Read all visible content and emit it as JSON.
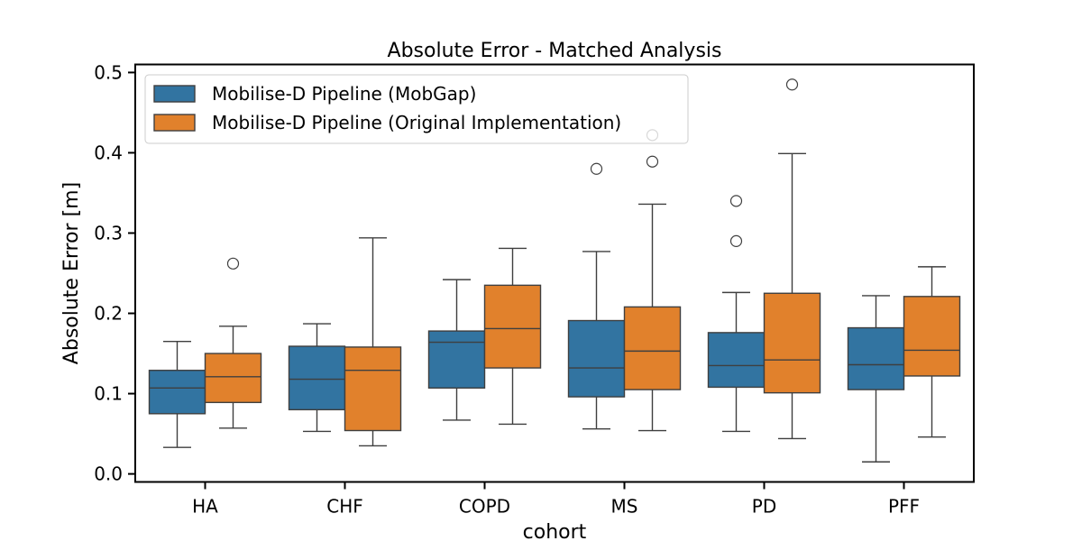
{
  "chart_data": {
    "type": "box",
    "title": "Absolute Error - Matched Analysis",
    "xlabel": "cohort",
    "ylabel": "Absolute Error [m]",
    "ylim": [
      -0.01,
      0.51
    ],
    "yticks": [
      0.0,
      0.1,
      0.2,
      0.3,
      0.4,
      0.5
    ],
    "ytick_labels": [
      "0.0",
      "0.1",
      "0.2",
      "0.3",
      "0.4",
      "0.5"
    ],
    "grid": false,
    "legend_position": "top-left",
    "categories": [
      "HA",
      "CHF",
      "COPD",
      "MS",
      "PD",
      "PFF"
    ],
    "series": [
      {
        "name": "Mobilise-D Pipeline (MobGap)",
        "color": "#3274a1",
        "boxes": [
          {
            "whisker_low": 0.033,
            "q1": 0.075,
            "median": 0.107,
            "q3": 0.129,
            "whisker_high": 0.165,
            "outliers": []
          },
          {
            "whisker_low": 0.053,
            "q1": 0.08,
            "median": 0.118,
            "q3": 0.159,
            "whisker_high": 0.187,
            "outliers": []
          },
          {
            "whisker_low": 0.067,
            "q1": 0.107,
            "median": 0.164,
            "q3": 0.178,
            "whisker_high": 0.242,
            "outliers": []
          },
          {
            "whisker_low": 0.056,
            "q1": 0.096,
            "median": 0.132,
            "q3": 0.191,
            "whisker_high": 0.277,
            "outliers": [
              0.38
            ]
          },
          {
            "whisker_low": 0.053,
            "q1": 0.108,
            "median": 0.135,
            "q3": 0.176,
            "whisker_high": 0.226,
            "outliers": [
              0.29,
              0.34
            ]
          },
          {
            "whisker_low": 0.015,
            "q1": 0.105,
            "median": 0.136,
            "q3": 0.182,
            "whisker_high": 0.222,
            "outliers": []
          }
        ]
      },
      {
        "name": "Mobilise-D Pipeline (Original Implementation)",
        "color": "#e1812c",
        "boxes": [
          {
            "whisker_low": 0.057,
            "q1": 0.089,
            "median": 0.121,
            "q3": 0.15,
            "whisker_high": 0.184,
            "outliers": [
              0.262
            ]
          },
          {
            "whisker_low": 0.035,
            "q1": 0.054,
            "median": 0.129,
            "q3": 0.158,
            "whisker_high": 0.294,
            "outliers": []
          },
          {
            "whisker_low": 0.062,
            "q1": 0.132,
            "median": 0.181,
            "q3": 0.235,
            "whisker_high": 0.281,
            "outliers": []
          },
          {
            "whisker_low": 0.054,
            "q1": 0.105,
            "median": 0.153,
            "q3": 0.208,
            "whisker_high": 0.336,
            "outliers": [
              0.389,
              0.422
            ]
          },
          {
            "whisker_low": 0.044,
            "q1": 0.101,
            "median": 0.142,
            "q3": 0.225,
            "whisker_high": 0.399,
            "outliers": [
              0.485
            ]
          },
          {
            "whisker_low": 0.046,
            "q1": 0.122,
            "median": 0.154,
            "q3": 0.221,
            "whisker_high": 0.258,
            "outliers": []
          }
        ]
      }
    ]
  }
}
